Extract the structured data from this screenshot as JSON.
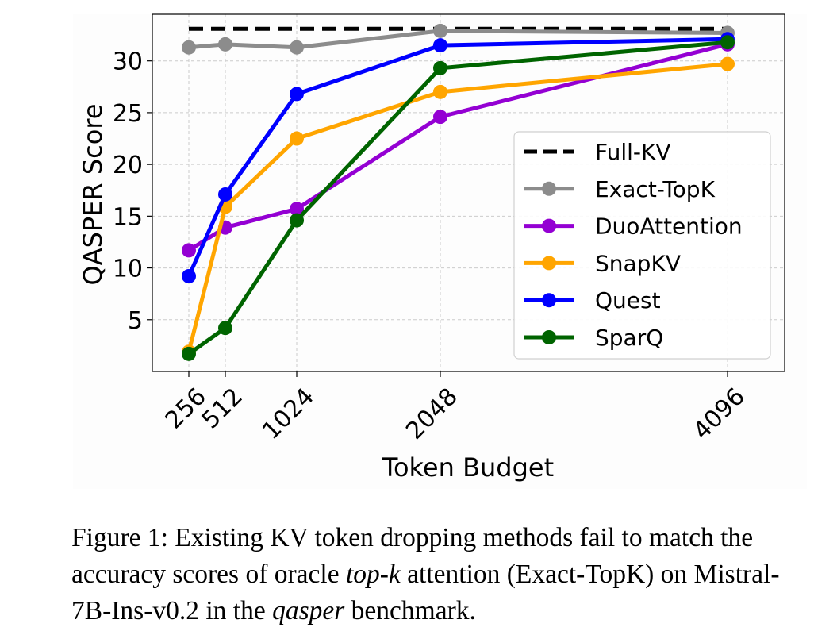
{
  "chart_data": {
    "type": "line",
    "xlabel": "Token Budget",
    "ylabel": "QASPER Score",
    "x": [
      256,
      512,
      1024,
      2048,
      4096
    ],
    "x_tick_labels": [
      "256",
      "512",
      "1024",
      "2048",
      "4096"
    ],
    "y_ticks": [
      5,
      10,
      15,
      20,
      25,
      30
    ],
    "ylim": [
      0,
      34.5
    ],
    "grid": true,
    "legend_position": "center-right",
    "reference_lines": [
      {
        "name": "Full-KV",
        "value": 33.1,
        "color": "#000000",
        "style": "dashed"
      }
    ],
    "series": [
      {
        "name": "Exact-TopK",
        "color": "#8c8c8c",
        "values": [
          31.3,
          31.6,
          31.3,
          32.9,
          32.7
        ]
      },
      {
        "name": "DuoAttention",
        "color": "#9400d3",
        "values": [
          11.7,
          13.9,
          15.7,
          24.6,
          31.6
        ]
      },
      {
        "name": "SnapKV",
        "color": "#ffa500",
        "values": [
          1.9,
          15.9,
          22.5,
          27.0,
          29.7
        ]
      },
      {
        "name": "Quest",
        "color": "#0000ff",
        "values": [
          9.2,
          17.1,
          26.8,
          31.5,
          32.1
        ]
      },
      {
        "name": "SparQ",
        "color": "#006400",
        "values": [
          1.7,
          4.2,
          14.6,
          29.3,
          31.8
        ]
      }
    ]
  },
  "caption": {
    "prefix": "Figure 1: Existing KV token dropping methods fail to match the accuracy scores of oracle ",
    "em1": "top-k",
    "middle": " attention (Exact-TopK) on Mistral-7B-Ins-v0.2 in the ",
    "em2": "qasper",
    "suffix": " benchmark."
  }
}
